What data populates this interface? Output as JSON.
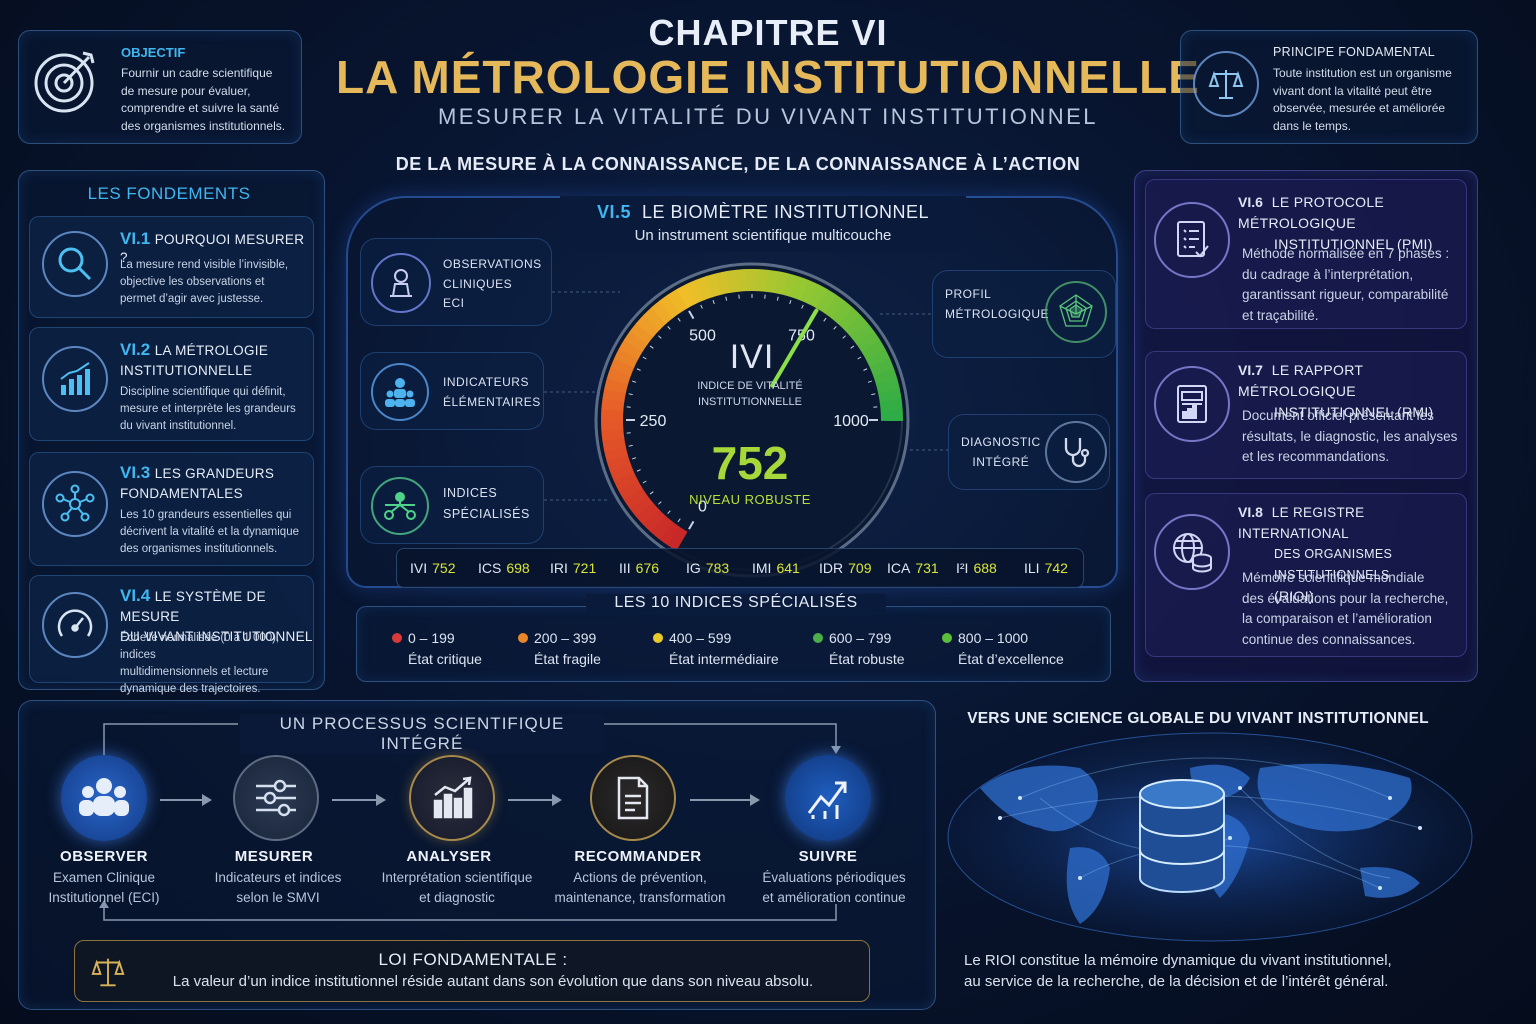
{
  "header": {
    "chapter": "CHAPITRE VI",
    "title": "LA MÉTROLOGIE INSTITUTIONNELLE",
    "subtitle": "MESURER LA VITALITÉ DU VIVANT INSTITUTIONNEL",
    "tagline": "DE LA MESURE À LA CONNAISSANCE, DE LA CONNAISSANCE À L’ACTION"
  },
  "objectif": {
    "title": "OBJECTIF",
    "lines": [
      "Fournir un cadre scientifique",
      "de mesure pour évaluer,",
      "comprendre et suivre la santé",
      "des organismes institutionnels."
    ],
    "icon": "target-icon"
  },
  "principe": {
    "title": "PRINCIPE FONDAMENTAL",
    "lines": [
      "Toute institution est un organisme",
      "vivant dont la vitalité peut être",
      "observée, mesurée et améliorée",
      "dans le temps."
    ],
    "icon": "scales-icon"
  },
  "fondements": {
    "title": "LES FONDEMENTS",
    "items": [
      {
        "num": "VI.1",
        "title": [
          "POURQUOI MESURER ?"
        ],
        "lines": [
          "La mesure rend visible l’invisible,",
          "objective les observations et",
          "permet d’agir avec justesse."
        ],
        "icon": "magnifier-icon"
      },
      {
        "num": "VI.2",
        "title": [
          "LA MÉTROLOGIE",
          "INSTITUTIONNELLE"
        ],
        "lines": [
          "Discipline scientifique qui définit,",
          "mesure et interprète les grandeurs",
          "du vivant institutionnel."
        ],
        "icon": "bar-chart-icon"
      },
      {
        "num": "VI.3",
        "title": [
          "LES GRANDEURS",
          "FONDAMENTALES"
        ],
        "lines": [
          "Les 10 grandeurs essentielles qui",
          "décrivent la vitalité et la dynamique",
          "des organismes institutionnels."
        ],
        "icon": "network-icon"
      },
      {
        "num": "VI.4",
        "title": [
          "LE SYSTÈME DE MESURE",
          "DU VIVANT INSTITUTIONNEL"
        ],
        "lines": [
          "Échelle normalisée (0 à 1 000), indices",
          "multidimensionnels et lecture",
          "dynamique des trajectoires."
        ],
        "icon": "gauge-icon"
      }
    ]
  },
  "biometre": {
    "num": "VI.5",
    "title": "LE BIOMÈTRE INSTITUTIONNEL",
    "subtitle": "Un instrument scientifique multicouche",
    "inputs": [
      {
        "lines": [
          "OBSERVATIONS",
          "CLINIQUES",
          "ECI"
        ],
        "icon": "clinic-icon"
      },
      {
        "lines": [
          "INDICATEURS",
          "ÉLÉMENTAIRES"
        ],
        "icon": "people-icon"
      },
      {
        "lines": [
          "INDICES",
          "SPÉCIALISÉS"
        ],
        "icon": "hub-icon"
      }
    ],
    "outputs": [
      {
        "lines": [
          "PROFIL",
          "MÉTROLOGIQUE"
        ],
        "icon": "radar-icon"
      },
      {
        "lines": [
          "DIAGNOSTIC",
          "INTÉGRÉ"
        ],
        "icon": "stethoscope-icon"
      }
    ],
    "gauge": {
      "label": "IVI",
      "caption": [
        "INDICE DE VITALITÉ",
        "INSTITUTIONNELLE"
      ],
      "value": 752,
      "value_text": "752",
      "status": "NIVEAU ROBUSTE",
      "min": 0,
      "max": 1000,
      "ticks": [
        {
          "value": 0,
          "label": "0"
        },
        {
          "value": 250,
          "label": "250"
        },
        {
          "value": 500,
          "label": "500"
        },
        {
          "value": 750,
          "label": "750"
        },
        {
          "value": 1000,
          "label": "1000"
        }
      ]
    },
    "indices": [
      {
        "name": "IVI",
        "value": "752"
      },
      {
        "name": "ICS",
        "value": "698"
      },
      {
        "name": "IRI",
        "value": "721"
      },
      {
        "name": "III",
        "value": "676"
      },
      {
        "name": "IG",
        "value": "783"
      },
      {
        "name": "IMI",
        "value": "641"
      },
      {
        "name": "IDR",
        "value": "709"
      },
      {
        "name": "ICA",
        "value": "731"
      },
      {
        "name": "I²I",
        "value": "688"
      },
      {
        "name": "ILI",
        "value": "742"
      }
    ],
    "legend_title": "LES 10 INDICES SPÉCIALISÉS",
    "legend": [
      {
        "range": "0 – 199",
        "label": "État critique",
        "color": "#d83a3a"
      },
      {
        "range": "200 – 399",
        "label": "État fragile",
        "color": "#e8862a"
      },
      {
        "range": "400 – 599",
        "label": "État intermédiaire",
        "color": "#e8c92a"
      },
      {
        "range": "600 – 799",
        "label": "État robuste",
        "color": "#4cae4a"
      },
      {
        "range": "800 – 1000",
        "label": "État d’excellence",
        "color": "#5cbf3a"
      }
    ]
  },
  "right": {
    "items": [
      {
        "num": "VI.6",
        "title": [
          "LE PROTOCOLE MÉTROLOGIQUE",
          "INSTITUTIONNEL (PMI)"
        ],
        "lines": [
          "Méthode normalisée en 7 phases :",
          "du cadrage à l’interprétation,",
          "garantissant rigueur, comparabilité",
          "et traçabilité."
        ],
        "icon": "checklist-icon"
      },
      {
        "num": "VI.7",
        "title": [
          "LE RAPPORT MÉTROLOGIQUE",
          "INSTITUTIONNEL (RMI)"
        ],
        "lines": [
          "Document officiel présentant les",
          "résultats, le diagnostic, les analyses",
          "et les recommandations."
        ],
        "icon": "report-icon"
      },
      {
        "num": "VI.8",
        "title": [
          "LE REGISTRE INTERNATIONAL",
          "DES ORGANISMES INSTITUTIONNELS",
          "(RIOI)"
        ],
        "lines": [
          "Mémoire scientifique mondiale",
          "des évaluations pour la recherche,",
          "la comparaison et l’amélioration",
          "continue des connaissances."
        ],
        "icon": "globe-database-icon"
      }
    ]
  },
  "processus": {
    "title": "UN PROCESSUS SCIENTIFIQUE INTÉGRÉ",
    "steps": [
      {
        "title": "OBSERVER",
        "lines": [
          "Examen Clinique",
          "Institutionnel (ECI)"
        ],
        "icon": "group-icon"
      },
      {
        "title": "MESURER",
        "lines": [
          "Indicateurs et indices",
          "selon le SMVI"
        ],
        "icon": "sliders-icon"
      },
      {
        "title": "ANALYSER",
        "lines": [
          "Interprétation scientifique",
          "et diagnostic"
        ],
        "icon": "chart-icon"
      },
      {
        "title": "RECOMMANDER",
        "lines": [
          "Actions de prévention,",
          "maintenance, transformation"
        ],
        "icon": "document-icon"
      },
      {
        "title": "SUIVRE",
        "lines": [
          "Évaluations périodiques",
          "et amélioration continue"
        ],
        "icon": "trend-up-icon"
      }
    ]
  },
  "loi": {
    "title": "LOI FONDAMENTALE :",
    "text": "La valeur d’un indice institutionnel réside autant dans son évolution que dans son niveau absolu.",
    "icon": "scales-icon"
  },
  "global": {
    "title": "VERS UNE SCIENCE GLOBALE DU VIVANT INSTITUTIONNEL",
    "lines": [
      "Le RIOI constitue la mémoire dynamique du vivant institutionnel,",
      "au service de la recherche, de la décision et de l’intérêt général."
    ],
    "icon": "database-icon"
  },
  "colors": {
    "accent_blue": "#3fb7f0",
    "gold": "#e5b85a",
    "value_green": "#a6d83a",
    "index_yellow": "#d8e53a"
  }
}
